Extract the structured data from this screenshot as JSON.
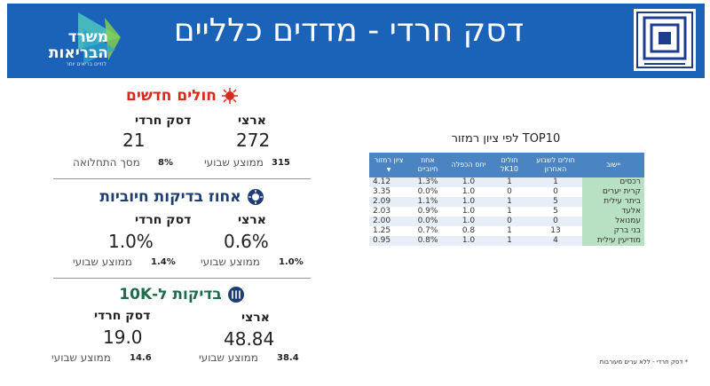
{
  "header": {
    "title": "דסק חרדי - מדדים כלליים",
    "ministry_logo_line1": "משרד",
    "ministry_logo_line2": "הבריאות",
    "ministry_logo_sub": "לחיים בריאים יותר",
    "brand_color": "#1a63b8"
  },
  "panels": {
    "new_patients": {
      "title": "חולים חדשים",
      "title_color": "#d82a1a",
      "national_label": "ארצי",
      "haredi_label": "דסק חרדי",
      "national_value": "272",
      "haredi_value": "21",
      "national_avg": "315",
      "national_avg_label": "ממוצע שבועי",
      "haredi_percent": "8%",
      "haredi_percent_label": "מסך התחלואה"
    },
    "positive_tests": {
      "title": "אחוז בדיקות חיוביות",
      "title_color": "#1c3e72",
      "national_label": "ארצי",
      "haredi_label": "דסק חרדי",
      "national_value": "0.6%",
      "haredi_value": "1.0%",
      "national_avg": "1.0%",
      "national_avg_label": "ממוצע שבועי",
      "haredi_avg": "1.4%",
      "haredi_avg_label": "ממוצע שבועי"
    },
    "tests_per_10k": {
      "title": "בדיקות ל-10K",
      "title_color": "#1f6b4c",
      "national_label": "ארצי",
      "haredi_label": "דסק חרדי",
      "national_value": "48.84",
      "haredi_value": "19.0",
      "national_avg": "38.4",
      "national_avg_label": "ממוצע שבועי",
      "haredi_avg": "14.6",
      "haredi_avg_label": "ממוצע שבועי"
    }
  },
  "table": {
    "title": "TOP10 לפי ציון רמזור",
    "headers": [
      "יישוב",
      "חולים לשבוע האחרון",
      "חולים לK10",
      "יחס הכפלה",
      "אחוז חיוביים",
      "ציון רמזור"
    ],
    "rows": [
      {
        "city": "רכסים",
        "weekly": "1",
        "per10k": "1",
        "ratio": "1.0",
        "positive": "1.3%",
        "score": "4.12"
      },
      {
        "city": "קרית יערים",
        "weekly": "0",
        "per10k": "0",
        "ratio": "1.0",
        "positive": "0.0%",
        "score": "3.35"
      },
      {
        "city": "ביתר עילית",
        "weekly": "5",
        "per10k": "1",
        "ratio": "1.0",
        "positive": "1.1%",
        "score": "2.09"
      },
      {
        "city": "אלעד",
        "weekly": "5",
        "per10k": "1",
        "ratio": "1.0",
        "positive": "0.9%",
        "score": "2.03"
      },
      {
        "city": "עמנואל",
        "weekly": "0",
        "per10k": "0",
        "ratio": "1.0",
        "positive": "0.0%",
        "score": "2.00"
      },
      {
        "city": "בני ברק",
        "weekly": "13",
        "per10k": "1",
        "ratio": "0.8",
        "positive": "0.7%",
        "score": "1.25"
      },
      {
        "city": "מודיעין עילית",
        "weekly": "4",
        "per10k": "1",
        "ratio": "1.0",
        "positive": "0.8%",
        "score": "0.95"
      }
    ],
    "header_color": "#4a84c2",
    "city_cell_color": "#b8e0c2"
  },
  "footnote": "* דסק חרדי - ללא ערים מעורבות"
}
